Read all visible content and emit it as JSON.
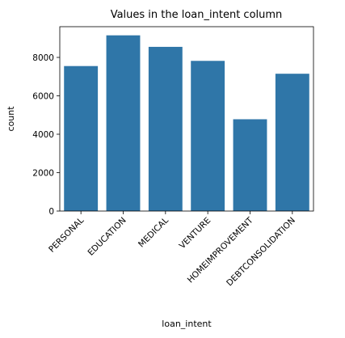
{
  "chart_data": {
    "type": "bar",
    "title": "Values in the loan_intent column",
    "xlabel": "loan_intent",
    "ylabel": "count",
    "categories": [
      "PERSONAL",
      "EDUCATION",
      "MEDICAL",
      "VENTURE",
      "HOMEIMPROVEMENT",
      "DEBTCONSOLIDATION"
    ],
    "values": [
      7550,
      9150,
      8550,
      7820,
      4780,
      7150
    ],
    "ylim": [
      0,
      9600
    ],
    "yticks": [
      0,
      2000,
      4000,
      6000,
      8000
    ],
    "bar_color": "#2f76a8",
    "grid": false,
    "legend": "none"
  }
}
